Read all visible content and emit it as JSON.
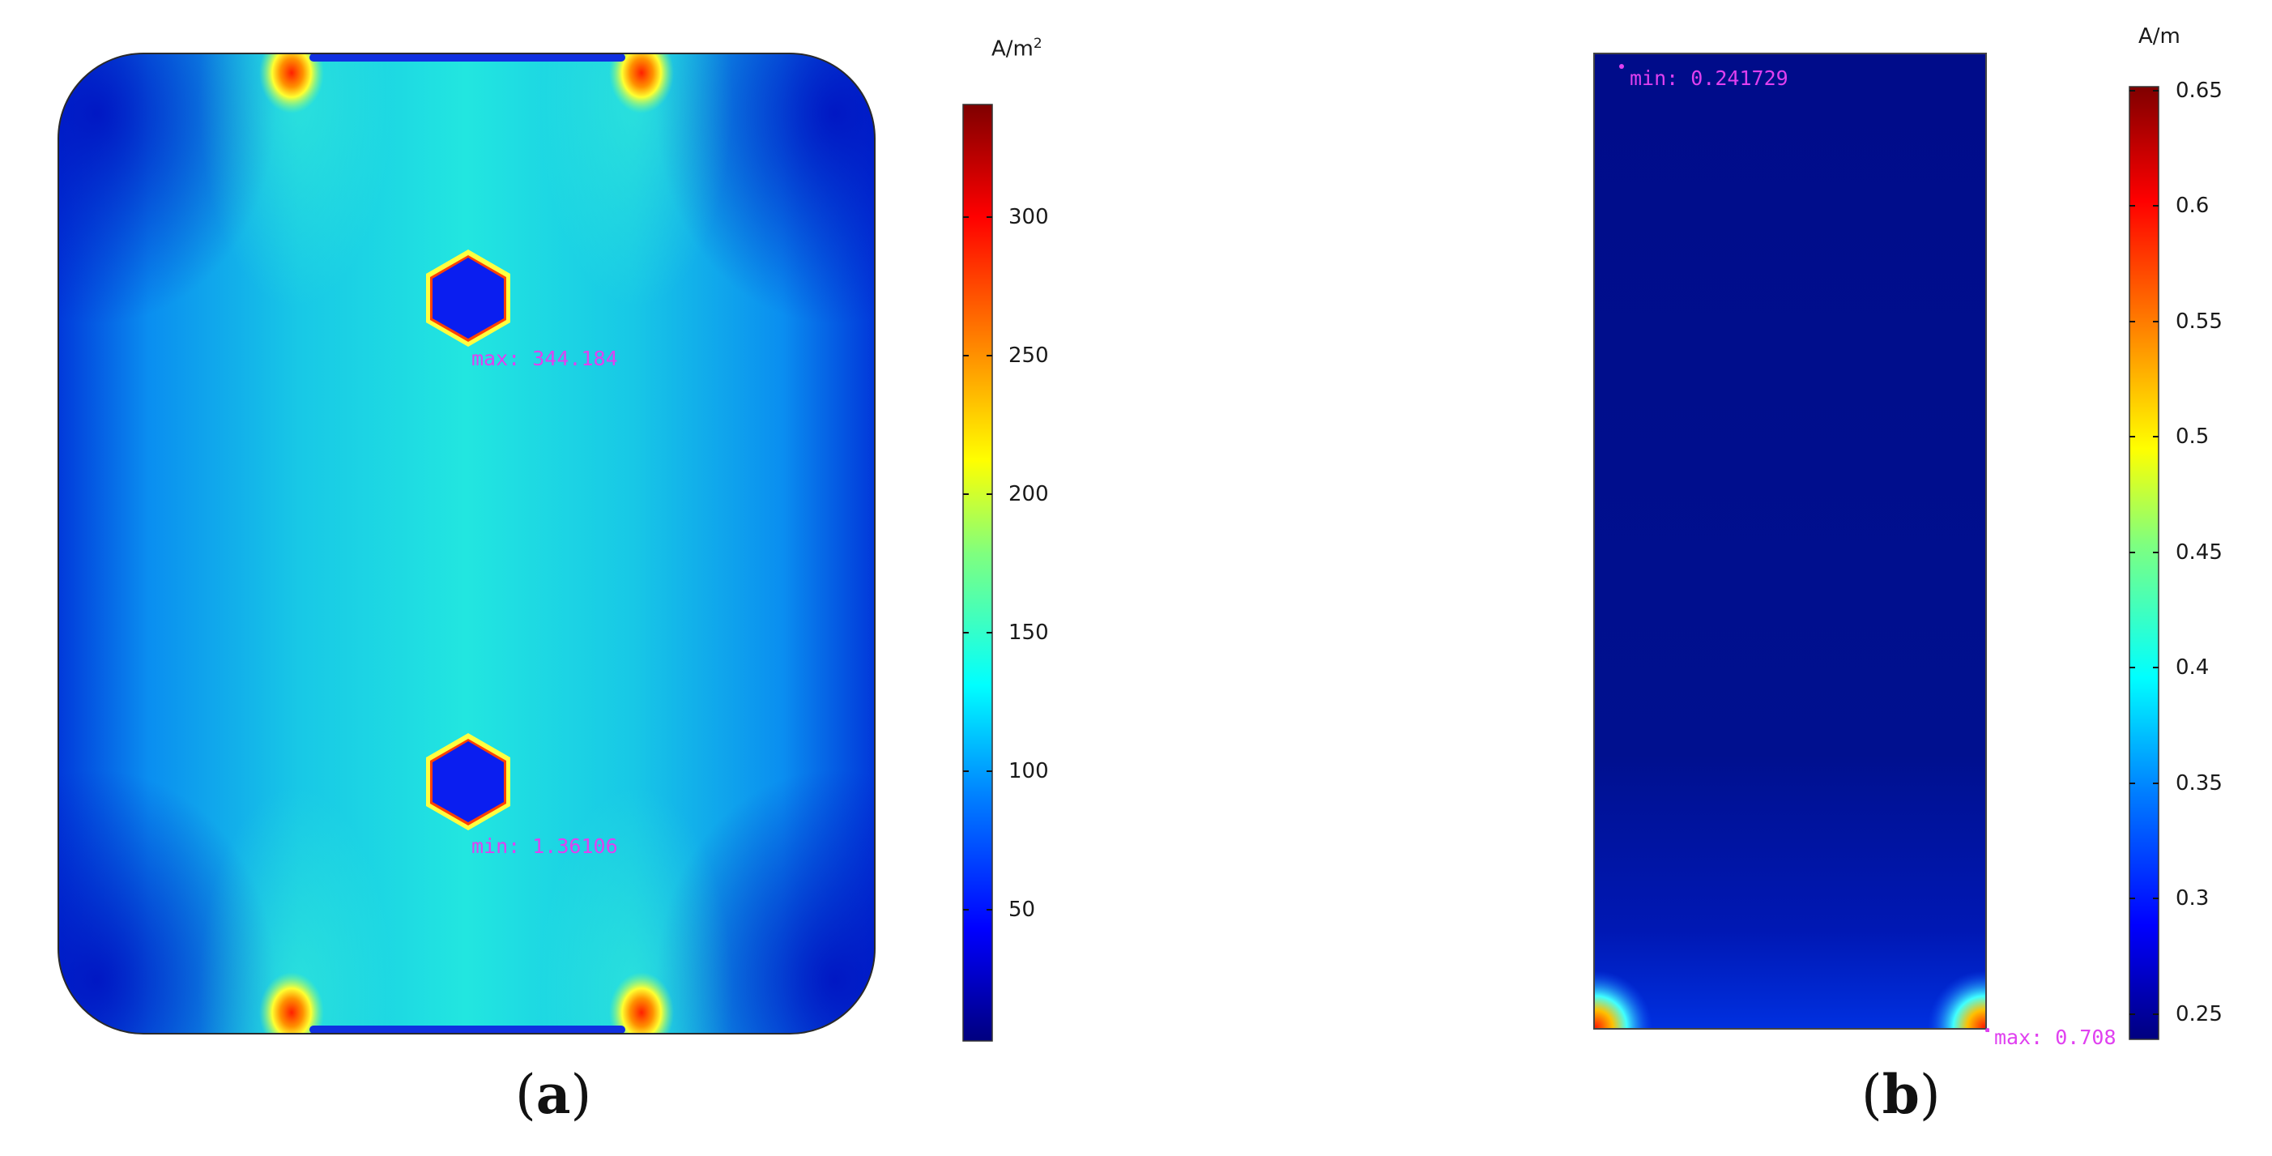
{
  "panel_a": {
    "unit": "A/m",
    "unit_superscript": "2",
    "colorbar_ticks": [
      "300",
      "250",
      "200",
      "150",
      "100",
      "50"
    ],
    "max_label": "max: 344.184",
    "min_label": "min: 1.36106",
    "caption_open": "(",
    "caption_letter": "a",
    "caption_close": ")"
  },
  "panel_b": {
    "unit": "A/m",
    "colorbar_ticks": [
      "0.65",
      "0.6",
      "0.55",
      "0.5",
      "0.45",
      "0.4",
      "0.35",
      "0.3",
      "0.25"
    ],
    "min_label": "min: 0.241729",
    "max_label": "max: 0.708",
    "caption_open": "(",
    "caption_letter": "b",
    "caption_close": ")"
  },
  "colors": {
    "colormap": [
      "#00007f",
      "#0000ff",
      "#007fff",
      "#00ffff",
      "#7fff7f",
      "#ffff00",
      "#ff7f00",
      "#ff0000",
      "#7f0000"
    ],
    "annotation": "#e040f0",
    "field_a_base": "#1bd8d8",
    "field_b_base": "#00108f"
  }
}
